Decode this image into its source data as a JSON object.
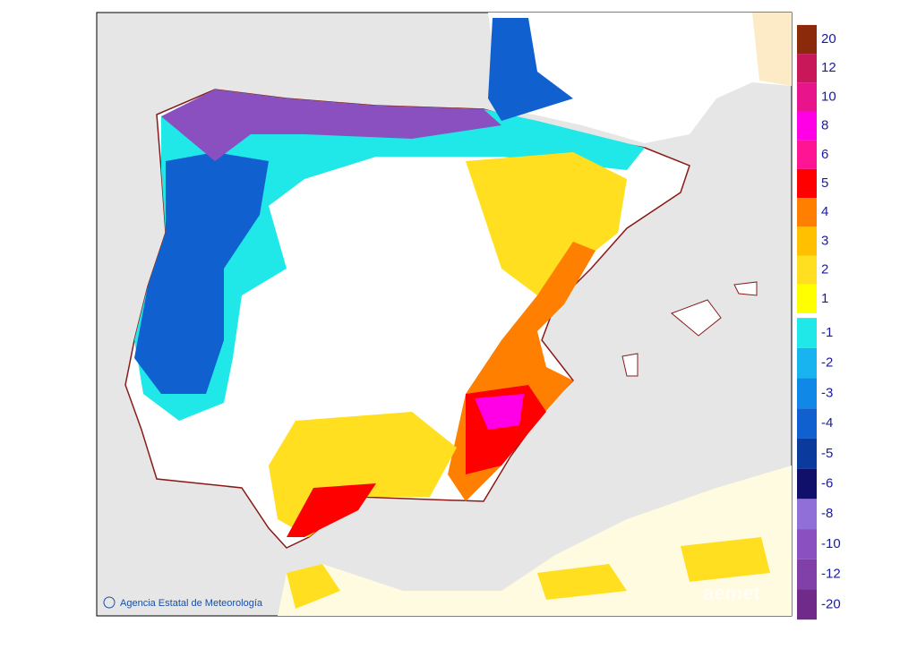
{
  "legend": {
    "positive": [
      {
        "label": "20",
        "color": "#8b2a0a"
      },
      {
        "label": "12",
        "color": "#c8185a"
      },
      {
        "label": "10",
        "color": "#e8148c"
      },
      {
        "label": "8",
        "color": "#ff00e6"
      },
      {
        "label": "6",
        "color": "#ff1493"
      },
      {
        "label": "5",
        "color": "#ff0000"
      },
      {
        "label": "4",
        "color": "#ff7f00"
      },
      {
        "label": "3",
        "color": "#ffc000"
      },
      {
        "label": "2",
        "color": "#ffdf20"
      },
      {
        "label": "1",
        "color": "#ffff00"
      }
    ],
    "negative": [
      {
        "label": "-1",
        "color": "#20e8e8"
      },
      {
        "label": "-2",
        "color": "#18b4f0"
      },
      {
        "label": "-3",
        "color": "#1088e8"
      },
      {
        "label": "-4",
        "color": "#1060d0"
      },
      {
        "label": "-5",
        "color": "#0a3a9c"
      },
      {
        "label": "-6",
        "color": "#10106a"
      },
      {
        "label": "-8",
        "color": "#9070d8"
      },
      {
        "label": "-10",
        "color": "#8a50c0"
      },
      {
        "label": "-12",
        "color": "#8040a8"
      },
      {
        "label": "-20",
        "color": "#702a8a"
      }
    ]
  },
  "credit": "Agencia Estatal de Meteorología",
  "watermark": "aemet"
}
